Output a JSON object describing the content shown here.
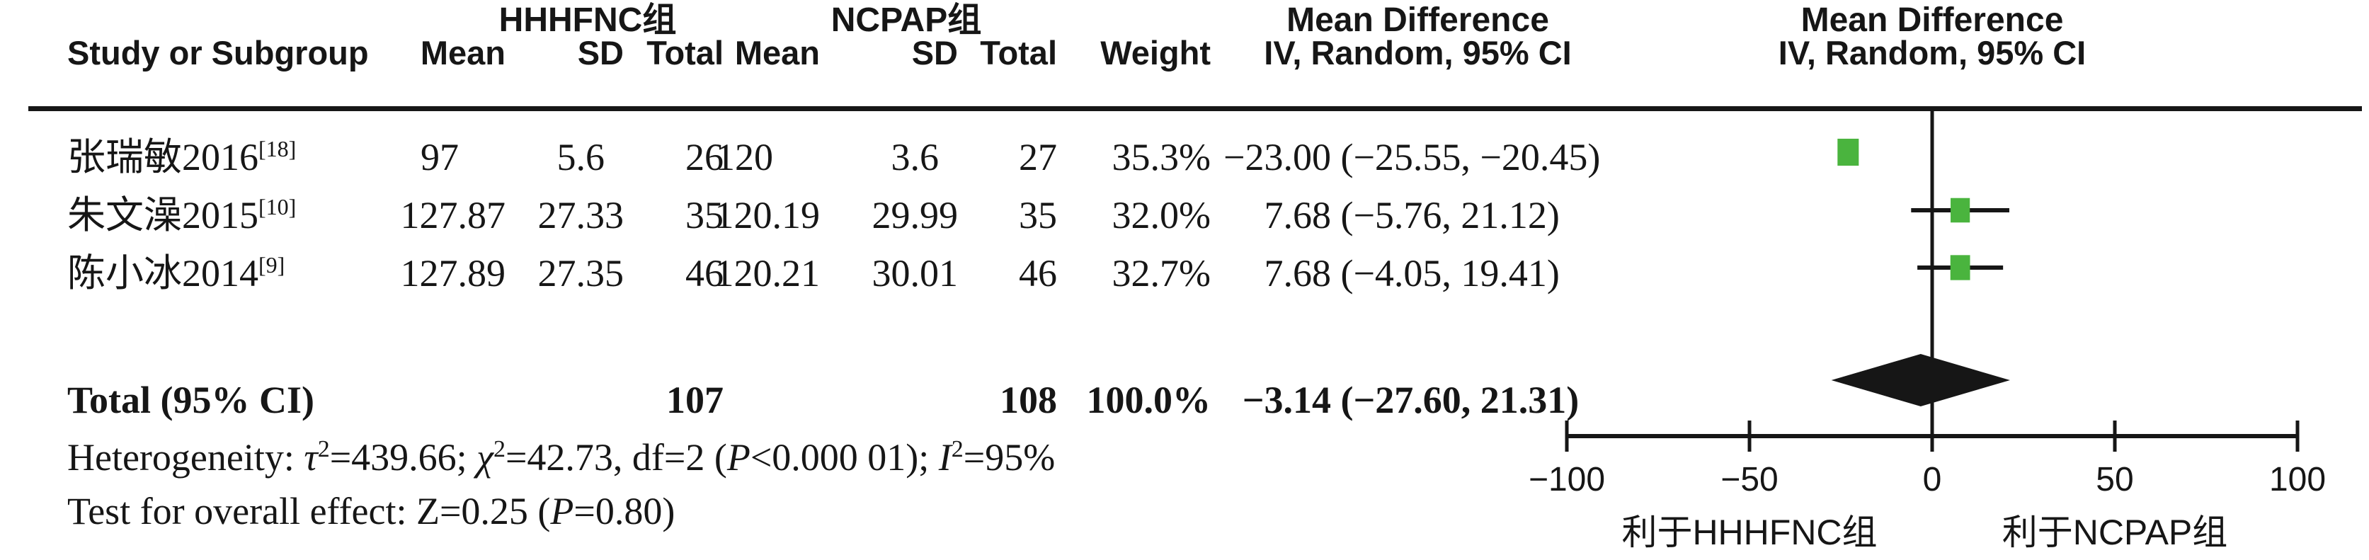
{
  "header": {
    "group1": "HHHFNC组",
    "group2": "NCPAP组",
    "study": "Study or Subgroup",
    "mean": "Mean",
    "sd": "SD",
    "total": "Total",
    "weight": "Weight",
    "md_table_line1": "Mean Difference",
    "md_table_line2": "IV, Random, 95% CI",
    "md_plot_line1": "Mean Difference",
    "md_plot_line2": "IV, Random, 95% CI"
  },
  "rows": [
    {
      "study": "张瑞敏2016",
      "ref": "[18]",
      "mean1": "97",
      "sd1": "5.6",
      "total1": "26",
      "mean2": "120",
      "sd2": "3.6",
      "total2": "27",
      "weight": "35.3%",
      "est": "−23.00",
      "ci": " (−25.55, −20.45)"
    },
    {
      "study": "朱文澡2015",
      "ref": "[10]",
      "mean1": "127.87",
      "sd1": "27.33",
      "total1": "35",
      "mean2": "120.19",
      "sd2": "29.99",
      "total2": "35",
      "weight": "32.0%",
      "est": "7.68",
      "ci": " (−5.76, 21.12)"
    },
    {
      "study": "陈小冰2014",
      "ref": "[9]",
      "mean1": "127.89",
      "sd1": "27.35",
      "total1": "46",
      "mean2": "120.21",
      "sd2": "30.01",
      "total2": "46",
      "weight": "32.7%",
      "est": "7.68",
      "ci": " (−4.05, 19.41)"
    }
  ],
  "total_row": {
    "label": "Total (95% CI)",
    "total1": "107",
    "total2": "108",
    "weight": "100.0%",
    "est": "−3.14",
    "ci": " (−27.60, 21.31)"
  },
  "stats": {
    "heterogeneity_segments": [
      {
        "t": "Heterogeneity: "
      },
      {
        "t": "τ",
        "i": true
      },
      {
        "t": "2",
        "sup": true
      },
      {
        "t": "=439.66; "
      },
      {
        "t": "χ",
        "i": true
      },
      {
        "t": "2",
        "sup": true
      },
      {
        "t": "=42.73, df=2 ("
      },
      {
        "t": "P",
        "i": true
      },
      {
        "t": "<0.000 01); "
      },
      {
        "t": "I",
        "i": true
      },
      {
        "t": "2",
        "sup": true
      },
      {
        "t": "=95%"
      }
    ],
    "overall_segments": [
      {
        "t": "Test for overall effect: Z=0.25 ("
      },
      {
        "t": "P",
        "i": true
      },
      {
        "t": "=0.80)"
      }
    ]
  },
  "axis": {
    "ticks": [
      "−100",
      "−50",
      "0",
      "50",
      "100"
    ],
    "label_left": "利于HHHFNC组",
    "label_right": "利于NCPAP组"
  },
  "colors": {
    "square": "#4ab43e",
    "ink": "#161616"
  },
  "chart_data": {
    "type": "forest",
    "effect_measure": "Mean Difference",
    "model": "IV, Random, 95% CI",
    "group1_label": "HHHFNC组",
    "group2_label": "NCPAP组",
    "studies": [
      {
        "label": "张瑞敏2016[18]",
        "group1": {
          "mean": 97,
          "sd": 5.6,
          "total": 26
        },
        "group2": {
          "mean": 120,
          "sd": 3.6,
          "total": 27
        },
        "weight_pct": 35.3,
        "md": -23.0,
        "ci_low": -25.55,
        "ci_high": -20.45
      },
      {
        "label": "朱文澡2015[10]",
        "group1": {
          "mean": 127.87,
          "sd": 27.33,
          "total": 35
        },
        "group2": {
          "mean": 120.19,
          "sd": 29.99,
          "total": 35
        },
        "weight_pct": 32.0,
        "md": 7.68,
        "ci_low": -5.76,
        "ci_high": 21.12
      },
      {
        "label": "陈小冰2014[9]",
        "group1": {
          "mean": 127.89,
          "sd": 27.35,
          "total": 46
        },
        "group2": {
          "mean": 120.21,
          "sd": 30.01,
          "total": 46
        },
        "weight_pct": 32.7,
        "md": 7.68,
        "ci_low": -4.05,
        "ci_high": 19.41
      }
    ],
    "total": {
      "label": "Total (95% CI)",
      "total1": 107,
      "total2": 108,
      "weight_pct": 100.0,
      "md": -3.14,
      "ci_low": -27.6,
      "ci_high": 21.31
    },
    "heterogeneity": {
      "tau2": 439.66,
      "chi2": 42.73,
      "df": 2,
      "p": "<0.000 01",
      "i2": "95%"
    },
    "overall_effect": {
      "z": 0.25,
      "p": 0.8
    },
    "xlim": [
      -100,
      100
    ],
    "xticks": [
      -100,
      -50,
      0,
      50,
      100
    ],
    "favours_left": "利于HHHFNC组",
    "favours_right": "利于NCPAP组",
    "grid": false,
    "legend": false
  }
}
